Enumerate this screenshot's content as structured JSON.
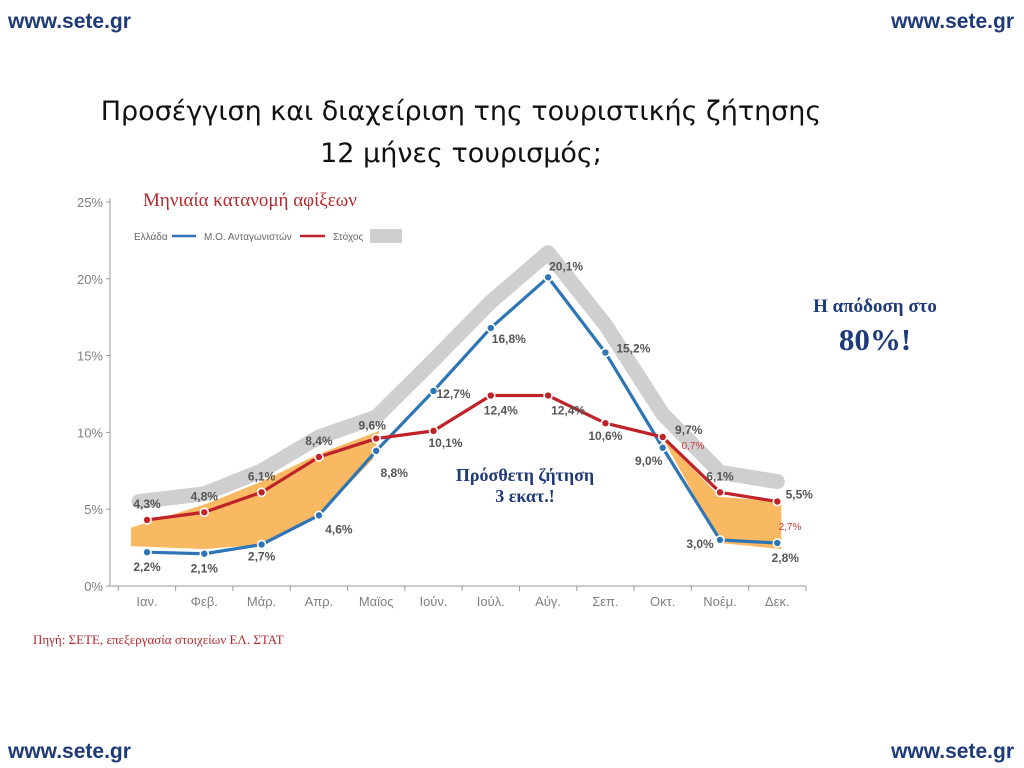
{
  "header": {
    "site_top_left": "www.sete.gr",
    "site_top_right": "www.sete.gr"
  },
  "footer": {
    "site_bottom_left": "www.sete.gr",
    "site_bottom_right": "www.sete.gr"
  },
  "title_line1": "Προσέγγιση και διαχείριση της τουριστικής ζήτησης",
  "title_line2": "12 μήνες τουρισμός;",
  "subtitle": "Μηνιαία κατανομή αφίξεων",
  "note_performance": {
    "line1": "Η απόδοση στο",
    "line2": "80%!"
  },
  "note_extra": {
    "line1": "Πρόσθετη ζήτηση",
    "line2": "3 εκατ.!"
  },
  "source": "Πηγή: ΣΕΤΕ, επεξεργασία στοιχείων ΕΛ. ΣΤΑΤ",
  "colors": {
    "greece": "#2e75b6",
    "competitors": "#c0222a",
    "target": "#cfcfcf",
    "extra_demand": "#f9b963"
  },
  "chart_data": {
    "type": "line",
    "categories": [
      "Ιαν.",
      "Φεβ.",
      "Μάρ.",
      "Απρ.",
      "Μαϊος",
      "Ιούν.",
      "Ιούλ.",
      "Αύγ.",
      "Σεπ.",
      "Οκτ.",
      "Νοέμ.",
      "Δεκ."
    ],
    "ylim": [
      0,
      25
    ],
    "yticks": [
      "0%",
      "5%",
      "10%",
      "15%",
      "20%",
      "25%"
    ],
    "legend": [
      "Ελλάδα",
      "Μ.Ο. Ανταγωνιστών",
      "Στόχος"
    ],
    "legend_position": "top-left",
    "series": [
      {
        "name": "Ελλάδα",
        "color": "#2e75b6",
        "values": [
          2.2,
          2.1,
          2.7,
          4.6,
          8.8,
          12.7,
          16.8,
          20.1,
          15.2,
          9.0,
          3.0,
          2.8
        ],
        "labels": [
          "2,2%",
          "2,1%",
          "2,7%",
          "4,6%",
          "8,8%",
          "12,7%",
          "16,8%",
          "20,1%",
          "15,2%",
          "9,0%",
          "3,0%",
          "2,8%"
        ]
      },
      {
        "name": "Μ.Ο. Ανταγωνιστών",
        "color": "#c0222a",
        "values": [
          4.3,
          4.8,
          6.1,
          8.4,
          9.6,
          10.1,
          12.4,
          12.4,
          10.6,
          9.7,
          6.1,
          5.5
        ],
        "labels": [
          "4,3%",
          "4,8%",
          "6,1%",
          "8,4%",
          "9,6%",
          "10,1%",
          "12,4%",
          "12,4%",
          "10,6%",
          "9,7%",
          "6,1%",
          "5,5%"
        ]
      },
      {
        "name": "Στόχος",
        "color": "#cfcfcf",
        "values": [
          5.5,
          6.0,
          7.5,
          9.7,
          11.0,
          14.7,
          18.5,
          21.7,
          17.0,
          11.2,
          7.4,
          6.8
        ]
      }
    ],
    "annotations": [
      "0,7%",
      "2,7%"
    ]
  }
}
